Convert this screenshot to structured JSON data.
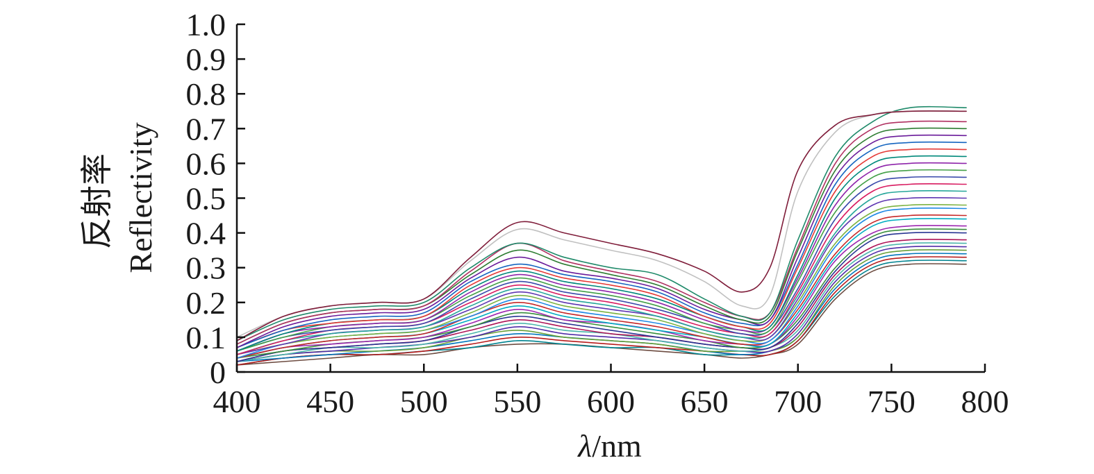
{
  "chart_data": {
    "type": "line",
    "title": "",
    "xlabel_symbol": "λ",
    "xlabel_unit": "/nm",
    "ylabel_cn": "反射率",
    "ylabel_en": "Reflectivity",
    "xlim": [
      400,
      800
    ],
    "ylim": [
      0,
      1.0
    ],
    "x_ticks": [
      "400",
      "450",
      "500",
      "550",
      "600",
      "650",
      "700",
      "750",
      "800"
    ],
    "y_ticks": [
      "0",
      "0.1",
      "0.2",
      "0.3",
      "0.4",
      "0.5",
      "0.6",
      "0.7",
      "0.8",
      "0.9",
      "1.0"
    ],
    "grid": false,
    "legend": "none",
    "x": [
      400,
      425,
      450,
      475,
      500,
      525,
      550,
      575,
      600,
      625,
      650,
      670,
      685,
      700,
      720,
      740,
      760,
      790
    ],
    "colors": [
      "#7f1d3a",
      "#c0c0c0",
      "#1f8a6a",
      "#b03060",
      "#2e7d32",
      "#6a1b9a",
      "#1565c0",
      "#e53935",
      "#00897b",
      "#8e24aa",
      "#43a047",
      "#3949ab",
      "#d81b60",
      "#26a69a",
      "#5e35b1",
      "#7cb342",
      "#1e88e5",
      "#c62828",
      "#00acc1",
      "#9c27b0",
      "#388e3c",
      "#283593",
      "#ad1457",
      "#4db6ac",
      "#512da8",
      "#689f38",
      "#0277bd",
      "#b71c1c",
      "#00838f",
      "#6d4c41"
    ],
    "series": [
      {
        "values": [
          0.09,
          0.16,
          0.19,
          0.2,
          0.21,
          0.33,
          0.43,
          0.4,
          0.37,
          0.34,
          0.29,
          0.23,
          0.3,
          0.58,
          0.71,
          0.74,
          0.75,
          0.75
        ]
      },
      {
        "values": [
          0.1,
          0.16,
          0.19,
          0.2,
          0.21,
          0.32,
          0.41,
          0.38,
          0.35,
          0.32,
          0.26,
          0.19,
          0.22,
          0.52,
          0.69,
          0.74,
          0.75,
          0.75
        ]
      },
      {
        "values": [
          0.09,
          0.15,
          0.18,
          0.19,
          0.2,
          0.3,
          0.37,
          0.33,
          0.3,
          0.28,
          0.21,
          0.16,
          0.17,
          0.38,
          0.62,
          0.72,
          0.76,
          0.76
        ]
      },
      {
        "values": [
          0.08,
          0.14,
          0.17,
          0.18,
          0.19,
          0.29,
          0.37,
          0.32,
          0.29,
          0.26,
          0.2,
          0.16,
          0.17,
          0.36,
          0.6,
          0.7,
          0.72,
          0.72
        ]
      },
      {
        "values": [
          0.08,
          0.14,
          0.17,
          0.18,
          0.19,
          0.28,
          0.35,
          0.31,
          0.28,
          0.25,
          0.19,
          0.15,
          0.16,
          0.35,
          0.58,
          0.68,
          0.7,
          0.7
        ]
      },
      {
        "values": [
          0.07,
          0.13,
          0.16,
          0.17,
          0.18,
          0.27,
          0.33,
          0.29,
          0.27,
          0.24,
          0.18,
          0.15,
          0.15,
          0.33,
          0.56,
          0.66,
          0.68,
          0.68
        ]
      },
      {
        "values": [
          0.07,
          0.12,
          0.15,
          0.16,
          0.17,
          0.26,
          0.31,
          0.28,
          0.26,
          0.23,
          0.17,
          0.14,
          0.15,
          0.31,
          0.54,
          0.64,
          0.66,
          0.66
        ]
      },
      {
        "values": [
          0.07,
          0.12,
          0.14,
          0.15,
          0.16,
          0.25,
          0.3,
          0.27,
          0.25,
          0.22,
          0.16,
          0.13,
          0.14,
          0.3,
          0.52,
          0.62,
          0.64,
          0.64
        ]
      },
      {
        "values": [
          0.06,
          0.11,
          0.14,
          0.15,
          0.16,
          0.24,
          0.29,
          0.26,
          0.24,
          0.21,
          0.16,
          0.13,
          0.13,
          0.28,
          0.5,
          0.6,
          0.62,
          0.62
        ]
      },
      {
        "values": [
          0.06,
          0.11,
          0.13,
          0.14,
          0.15,
          0.23,
          0.28,
          0.25,
          0.23,
          0.2,
          0.15,
          0.12,
          0.13,
          0.27,
          0.48,
          0.58,
          0.6,
          0.6
        ]
      },
      {
        "values": [
          0.06,
          0.1,
          0.13,
          0.14,
          0.15,
          0.22,
          0.27,
          0.24,
          0.22,
          0.19,
          0.14,
          0.12,
          0.12,
          0.26,
          0.46,
          0.56,
          0.58,
          0.58
        ]
      },
      {
        "values": [
          0.06,
          0.1,
          0.12,
          0.13,
          0.14,
          0.21,
          0.26,
          0.23,
          0.21,
          0.18,
          0.14,
          0.11,
          0.12,
          0.24,
          0.44,
          0.54,
          0.56,
          0.56
        ]
      },
      {
        "values": [
          0.05,
          0.09,
          0.12,
          0.13,
          0.14,
          0.2,
          0.25,
          0.22,
          0.2,
          0.17,
          0.13,
          0.11,
          0.11,
          0.23,
          0.42,
          0.52,
          0.54,
          0.54
        ]
      },
      {
        "values": [
          0.05,
          0.09,
          0.11,
          0.12,
          0.13,
          0.19,
          0.24,
          0.21,
          0.19,
          0.16,
          0.12,
          0.1,
          0.11,
          0.22,
          0.4,
          0.5,
          0.52,
          0.52
        ]
      },
      {
        "values": [
          0.05,
          0.08,
          0.11,
          0.12,
          0.13,
          0.18,
          0.23,
          0.2,
          0.18,
          0.16,
          0.12,
          0.1,
          0.1,
          0.21,
          0.39,
          0.48,
          0.5,
          0.5
        ]
      },
      {
        "values": [
          0.05,
          0.08,
          0.1,
          0.11,
          0.12,
          0.17,
          0.22,
          0.19,
          0.17,
          0.15,
          0.11,
          0.09,
          0.1,
          0.2,
          0.37,
          0.46,
          0.48,
          0.48
        ]
      },
      {
        "values": [
          0.04,
          0.08,
          0.1,
          0.11,
          0.12,
          0.16,
          0.21,
          0.18,
          0.16,
          0.14,
          0.11,
          0.09,
          0.09,
          0.19,
          0.36,
          0.45,
          0.47,
          0.47
        ]
      },
      {
        "values": [
          0.04,
          0.07,
          0.09,
          0.1,
          0.11,
          0.16,
          0.2,
          0.17,
          0.15,
          0.13,
          0.1,
          0.08,
          0.09,
          0.18,
          0.34,
          0.43,
          0.45,
          0.45
        ]
      },
      {
        "values": [
          0.04,
          0.07,
          0.09,
          0.1,
          0.11,
          0.15,
          0.19,
          0.16,
          0.14,
          0.12,
          0.1,
          0.08,
          0.08,
          0.17,
          0.33,
          0.42,
          0.44,
          0.44
        ]
      },
      {
        "values": [
          0.04,
          0.07,
          0.08,
          0.09,
          0.1,
          0.14,
          0.18,
          0.15,
          0.14,
          0.12,
          0.09,
          0.08,
          0.08,
          0.16,
          0.32,
          0.4,
          0.42,
          0.42
        ]
      },
      {
        "values": [
          0.04,
          0.06,
          0.08,
          0.09,
          0.1,
          0.13,
          0.17,
          0.15,
          0.13,
          0.11,
          0.09,
          0.07,
          0.08,
          0.15,
          0.3,
          0.39,
          0.41,
          0.41
        ]
      },
      {
        "values": [
          0.03,
          0.06,
          0.07,
          0.08,
          0.09,
          0.13,
          0.16,
          0.14,
          0.12,
          0.1,
          0.08,
          0.07,
          0.07,
          0.14,
          0.29,
          0.38,
          0.4,
          0.4
        ]
      },
      {
        "values": [
          0.03,
          0.06,
          0.07,
          0.08,
          0.09,
          0.12,
          0.15,
          0.13,
          0.11,
          0.1,
          0.08,
          0.07,
          0.07,
          0.13,
          0.28,
          0.36,
          0.38,
          0.38
        ]
      },
      {
        "values": [
          0.03,
          0.05,
          0.07,
          0.07,
          0.08,
          0.11,
          0.14,
          0.12,
          0.11,
          0.09,
          0.07,
          0.06,
          0.07,
          0.12,
          0.27,
          0.35,
          0.37,
          0.37
        ]
      },
      {
        "values": [
          0.03,
          0.05,
          0.06,
          0.07,
          0.08,
          0.1,
          0.13,
          0.11,
          0.1,
          0.09,
          0.07,
          0.06,
          0.06,
          0.11,
          0.26,
          0.34,
          0.36,
          0.36
        ]
      },
      {
        "values": [
          0.03,
          0.05,
          0.06,
          0.06,
          0.07,
          0.1,
          0.12,
          0.1,
          0.09,
          0.08,
          0.06,
          0.06,
          0.06,
          0.1,
          0.25,
          0.33,
          0.35,
          0.35
        ]
      },
      {
        "values": [
          0.03,
          0.04,
          0.05,
          0.06,
          0.07,
          0.09,
          0.11,
          0.1,
          0.09,
          0.08,
          0.06,
          0.05,
          0.06,
          0.1,
          0.24,
          0.32,
          0.34,
          0.34
        ]
      },
      {
        "values": [
          0.02,
          0.04,
          0.05,
          0.05,
          0.06,
          0.08,
          0.1,
          0.09,
          0.08,
          0.07,
          0.06,
          0.05,
          0.05,
          0.09,
          0.23,
          0.31,
          0.33,
          0.33
        ]
      },
      {
        "values": [
          0.02,
          0.04,
          0.05,
          0.05,
          0.06,
          0.07,
          0.09,
          0.08,
          0.07,
          0.07,
          0.05,
          0.05,
          0.05,
          0.09,
          0.22,
          0.3,
          0.32,
          0.32
        ]
      },
      {
        "values": [
          0.02,
          0.03,
          0.04,
          0.05,
          0.05,
          0.07,
          0.08,
          0.08,
          0.07,
          0.06,
          0.05,
          0.04,
          0.05,
          0.08,
          0.21,
          0.29,
          0.31,
          0.31
        ]
      }
    ]
  }
}
